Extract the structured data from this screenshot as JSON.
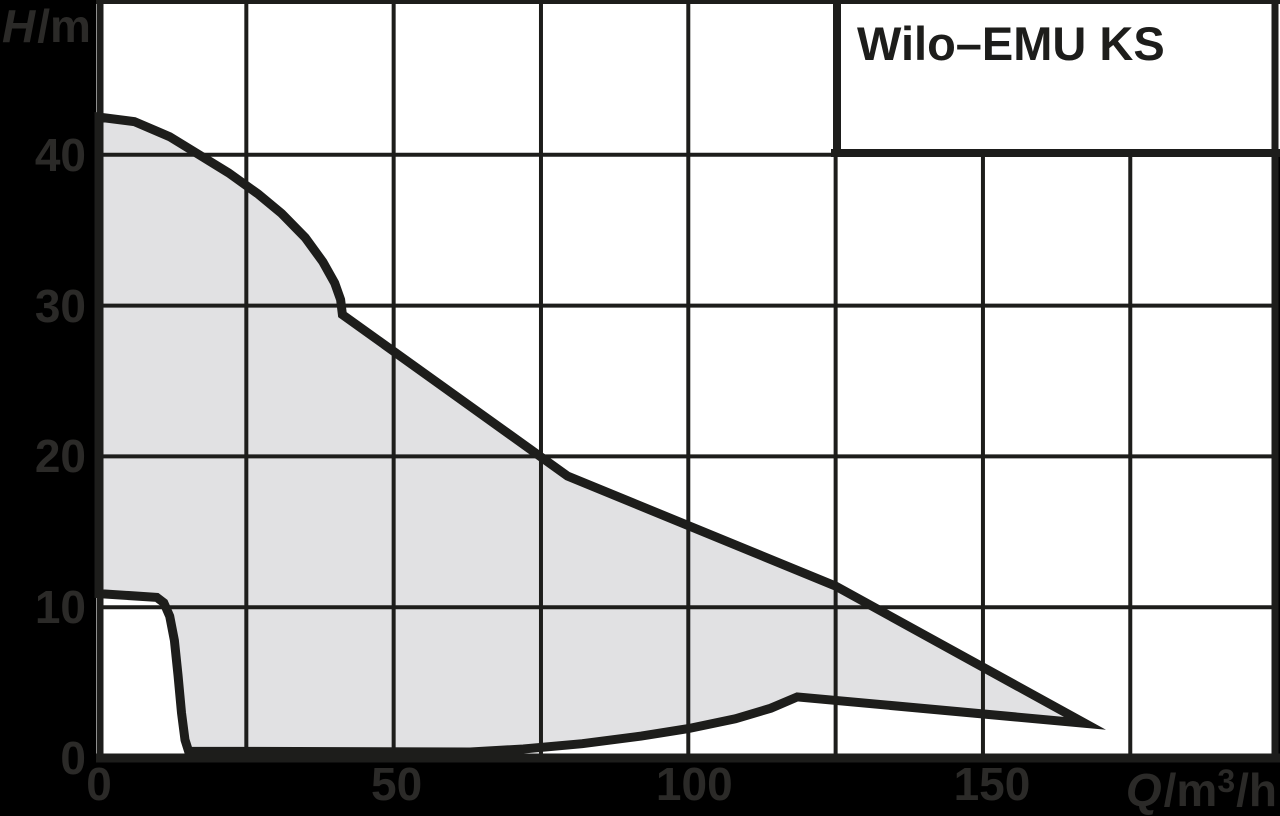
{
  "page": {
    "background": "#000000"
  },
  "chart_data": {
    "type": "area",
    "title": "Wilo–EMU KS",
    "xlabel": "Q/m³/h",
    "ylabel": "H/m",
    "xlabel_parts": {
      "italic": "Q",
      "unit_pre": "/m",
      "exponent": "3",
      "unit_post": "/h"
    },
    "ylabel_parts": {
      "italic": "H",
      "rest": "/m"
    },
    "xlim": [
      0,
      200
    ],
    "ylim": [
      0,
      50
    ],
    "grid": true,
    "x_grid_step": 25,
    "y_grid_step": 10,
    "x_gridlines": [
      25,
      50,
      75,
      100,
      125,
      150,
      175
    ],
    "y_gridlines": [
      10,
      20,
      30,
      40
    ],
    "x_ticks": [
      {
        "value": 0,
        "label": "0"
      },
      {
        "value": 50,
        "label": "50"
      },
      {
        "value": 100,
        "label": "100"
      },
      {
        "value": 150,
        "label": "150"
      }
    ],
    "y_ticks": [
      {
        "value": 0,
        "label": "0"
      },
      {
        "value": 10,
        "label": "10"
      },
      {
        "value": 20,
        "label": "20"
      },
      {
        "value": 30,
        "label": "30"
      },
      {
        "value": 40,
        "label": "40"
      }
    ],
    "colors": {
      "background": "#000000",
      "plot_background": "#ffffff",
      "envelope_fill": "#e1e1e3",
      "line": "#1d1d1b",
      "tick_label": "#2b2a28"
    },
    "envelope_polygon_QH": [
      [
        0,
        42.5
      ],
      [
        6,
        42.2
      ],
      [
        12,
        41.2
      ],
      [
        17,
        40.0
      ],
      [
        22,
        38.8
      ],
      [
        27,
        37.4
      ],
      [
        31,
        36.1
      ],
      [
        35,
        34.5
      ],
      [
        38,
        32.9
      ],
      [
        40,
        31.5
      ],
      [
        41,
        30.4
      ],
      [
        41.3,
        29.4
      ],
      [
        79.5,
        18.7
      ],
      [
        125,
        11.4
      ],
      [
        167.3,
        2.3
      ],
      [
        118.5,
        4.05
      ],
      [
        114,
        3.3
      ],
      [
        108,
        2.6
      ],
      [
        100,
        1.95
      ],
      [
        92,
        1.45
      ],
      [
        82,
        0.95
      ],
      [
        72,
        0.6
      ],
      [
        63,
        0.4
      ],
      [
        15.2,
        0.45
      ],
      [
        14.6,
        1.2
      ],
      [
        14.0,
        3.0
      ],
      [
        13.4,
        5.5
      ],
      [
        12.8,
        7.8
      ],
      [
        12.0,
        9.4
      ],
      [
        11.0,
        10.3
      ],
      [
        9.8,
        10.65
      ],
      [
        0,
        10.9
      ]
    ]
  }
}
